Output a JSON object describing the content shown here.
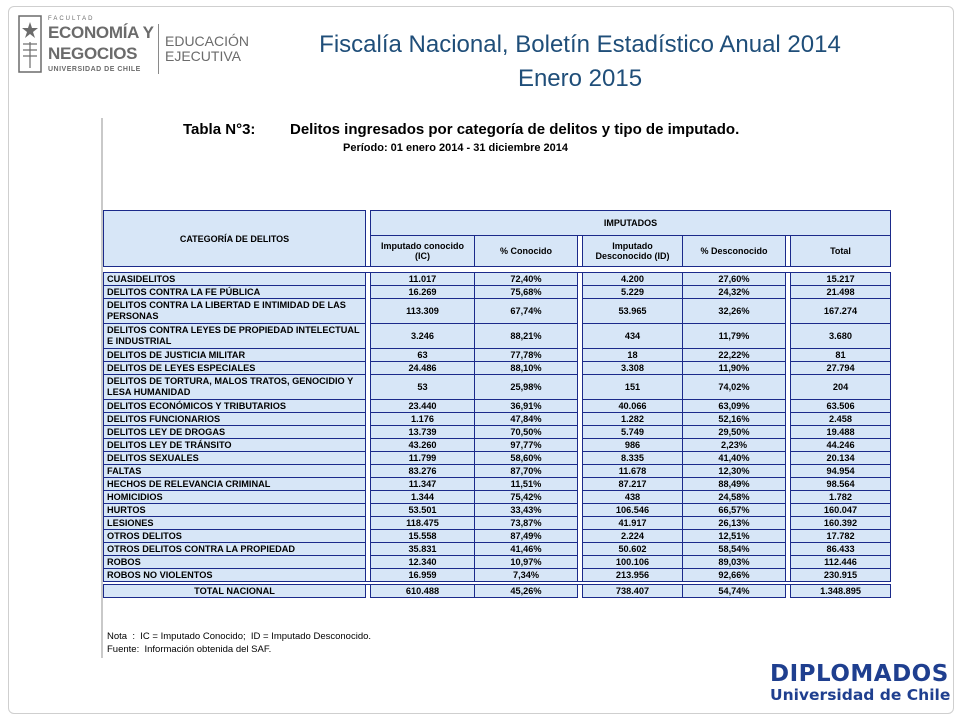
{
  "logo": {
    "small_text": "FACULTAD",
    "line1": "ECONOMÍA Y",
    "line2": "NEGOCIOS",
    "line3": "UNIVERSIDAD DE CHILE",
    "unit": "EDUCACIÓN EJECUTIVA"
  },
  "slide": {
    "title_line1": "Fiscalía Nacional, Boletín Estadístico Anual 2014",
    "title_line2": "Enero 2015"
  },
  "document": {
    "table_label": "Tabla N°3:",
    "table_title": "Delitos ingresados por categoría de delitos y tipo de imputado.",
    "period": "Período:  01 enero 2014 - 31 diciembre 2014",
    "headers": {
      "category": "CATEGORÍA DE DELITOS",
      "group": "IMPUTADOS",
      "ic": "Imputado conocido (IC)",
      "pct_ic": "% Conocido",
      "id": "Imputado Desconocido (ID)",
      "pct_id": "% Desconocido",
      "total": "Total"
    },
    "rows": [
      {
        "cat": "CUASIDELITOS",
        "ic": "11.017",
        "pct_ic": "72,40%",
        "id": "4.200",
        "pct_id": "27,60%",
        "total": "15.217"
      },
      {
        "cat": "DELITOS CONTRA LA FE PÚBLICA",
        "ic": "16.269",
        "pct_ic": "75,68%",
        "id": "5.229",
        "pct_id": "24,32%",
        "total": "21.498"
      },
      {
        "cat": "DELITOS CONTRA LA LIBERTAD E INTIMIDAD DE LAS PERSONAS",
        "ic": "113.309",
        "pct_ic": "67,74%",
        "id": "53.965",
        "pct_id": "32,26%",
        "total": "167.274",
        "tall": true
      },
      {
        "cat": "DELITOS CONTRA LEYES DE PROPIEDAD INTELECTUAL E INDUSTRIAL",
        "ic": "3.246",
        "pct_ic": "88,21%",
        "id": "434",
        "pct_id": "11,79%",
        "total": "3.680",
        "tall": true
      },
      {
        "cat": "DELITOS DE JUSTICIA MILITAR",
        "ic": "63",
        "pct_ic": "77,78%",
        "id": "18",
        "pct_id": "22,22%",
        "total": "81"
      },
      {
        "cat": "DELITOS DE LEYES ESPECIALES",
        "ic": "24.486",
        "pct_ic": "88,10%",
        "id": "3.308",
        "pct_id": "11,90%",
        "total": "27.794"
      },
      {
        "cat": "DELITOS DE TORTURA, MALOS TRATOS, GENOCIDIO Y LESA HUMANIDAD",
        "ic": "53",
        "pct_ic": "25,98%",
        "id": "151",
        "pct_id": "74,02%",
        "total": "204",
        "tall": true
      },
      {
        "cat": "DELITOS ECONÓMICOS Y TRIBUTARIOS",
        "ic": "23.440",
        "pct_ic": "36,91%",
        "id": "40.066",
        "pct_id": "63,09%",
        "total": "63.506"
      },
      {
        "cat": "DELITOS FUNCIONARIOS",
        "ic": "1.176",
        "pct_ic": "47,84%",
        "id": "1.282",
        "pct_id": "52,16%",
        "total": "2.458"
      },
      {
        "cat": "DELITOS LEY DE DROGAS",
        "ic": "13.739",
        "pct_ic": "70,50%",
        "id": "5.749",
        "pct_id": "29,50%",
        "total": "19.488"
      },
      {
        "cat": "DELITOS LEY DE TRÁNSITO",
        "ic": "43.260",
        "pct_ic": "97,77%",
        "id": "986",
        "pct_id": "2,23%",
        "total": "44.246"
      },
      {
        "cat": "DELITOS SEXUALES",
        "ic": "11.799",
        "pct_ic": "58,60%",
        "id": "8.335",
        "pct_id": "41,40%",
        "total": "20.134"
      },
      {
        "cat": "FALTAS",
        "ic": "83.276",
        "pct_ic": "87,70%",
        "id": "11.678",
        "pct_id": "12,30%",
        "total": "94.954"
      },
      {
        "cat": "HECHOS DE RELEVANCIA CRIMINAL",
        "ic": "11.347",
        "pct_ic": "11,51%",
        "id": "87.217",
        "pct_id": "88,49%",
        "total": "98.564"
      },
      {
        "cat": "HOMICIDIOS",
        "ic": "1.344",
        "pct_ic": "75,42%",
        "id": "438",
        "pct_id": "24,58%",
        "total": "1.782"
      },
      {
        "cat": "HURTOS",
        "ic": "53.501",
        "pct_ic": "33,43%",
        "id": "106.546",
        "pct_id": "66,57%",
        "total": "160.047"
      },
      {
        "cat": "LESIONES",
        "ic": "118.475",
        "pct_ic": "73,87%",
        "id": "41.917",
        "pct_id": "26,13%",
        "total": "160.392"
      },
      {
        "cat": "OTROS DELITOS",
        "ic": "15.558",
        "pct_ic": "87,49%",
        "id": "2.224",
        "pct_id": "12,51%",
        "total": "17.782"
      },
      {
        "cat": "OTROS DELITOS CONTRA LA PROPIEDAD",
        "ic": "35.831",
        "pct_ic": "41,46%",
        "id": "50.602",
        "pct_id": "58,54%",
        "total": "86.433"
      },
      {
        "cat": "ROBOS",
        "ic": "12.340",
        "pct_ic": "10,97%",
        "id": "100.106",
        "pct_id": "89,03%",
        "total": "112.446"
      },
      {
        "cat": "ROBOS NO VIOLENTOS",
        "ic": "16.959",
        "pct_ic": "7,34%",
        "id": "213.956",
        "pct_id": "92,66%",
        "total": "230.915"
      }
    ],
    "total_row": {
      "cat": "TOTAL NACIONAL",
      "ic": "610.488",
      "pct_ic": "45,26%",
      "id": "738.407",
      "pct_id": "54,74%",
      "total": "1.348.895"
    },
    "note": "Nota  :  IC = Imputado Conocido;  ID = Imputado Desconocido.",
    "source": "Fuente:  Información obtenida del SAF."
  },
  "brand": {
    "line1": "DIPLOMADOS",
    "line2": "Universidad de Chile"
  }
}
